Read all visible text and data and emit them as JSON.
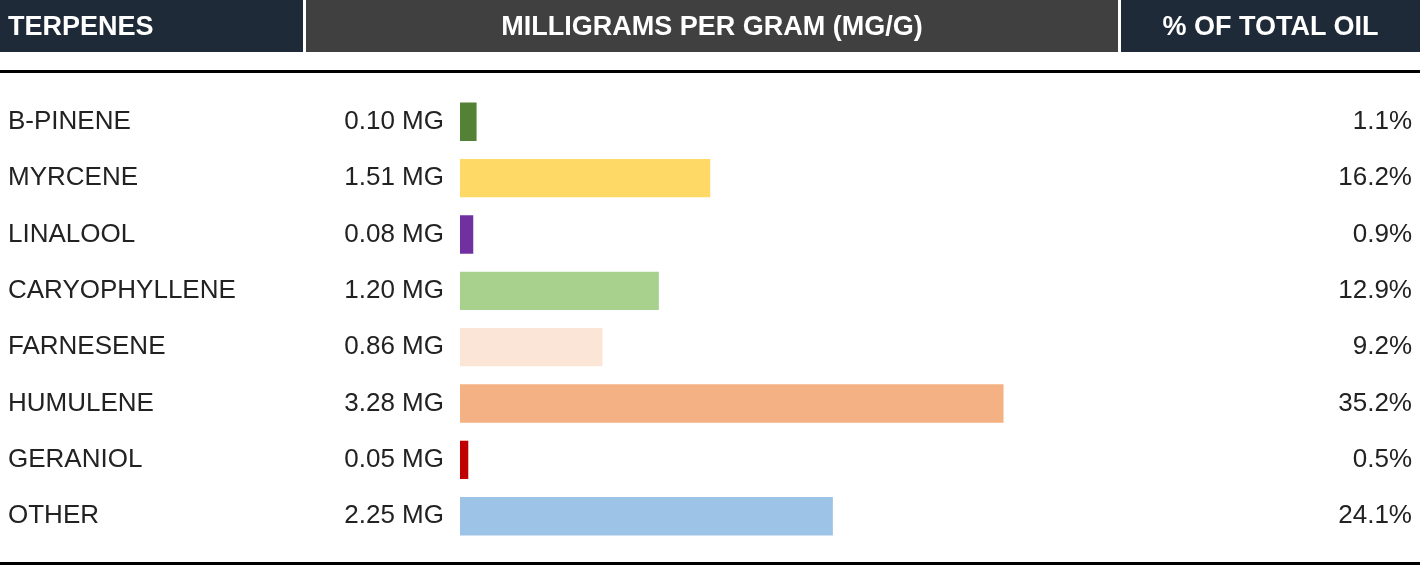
{
  "chart_data": {
    "type": "bar",
    "orientation": "horizontal",
    "ylabel": "TERPENES",
    "xlabel": "MILLIGRAMS PER GRAM (MG/G)",
    "categories": [
      "B-PINENE",
      "MYRCENE",
      "LINALOOL",
      "CARYOPHYLLENE",
      "FARNESENE",
      "HUMULENE",
      "GERANIOL",
      "OTHER"
    ],
    "series": [
      {
        "values": [
          0.1,
          1.51,
          0.08,
          1.2,
          0.86,
          3.28,
          0.05,
          2.25
        ],
        "colors": [
          "#538135",
          "#ffd966",
          "#7030a0",
          "#a9d18e",
          "#fbe5d6",
          "#f4b183",
          "#c00000",
          "#9dc3e6"
        ],
        "value_labels": [
          "0.10 MG",
          "1.51 MG",
          "0.08 MG",
          "1.20 MG",
          "0.86 MG",
          "3.28 MG",
          "0.05 MG",
          "2.25 MG"
        ]
      }
    ],
    "annotations": [
      "% OF TOTAL OIL",
      "1.1%",
      "16.2%",
      "0.9%",
      "12.9%",
      "9.2%",
      "35.2%",
      "0.5%",
      "24.1%"
    ],
    "legend": false
  }
}
